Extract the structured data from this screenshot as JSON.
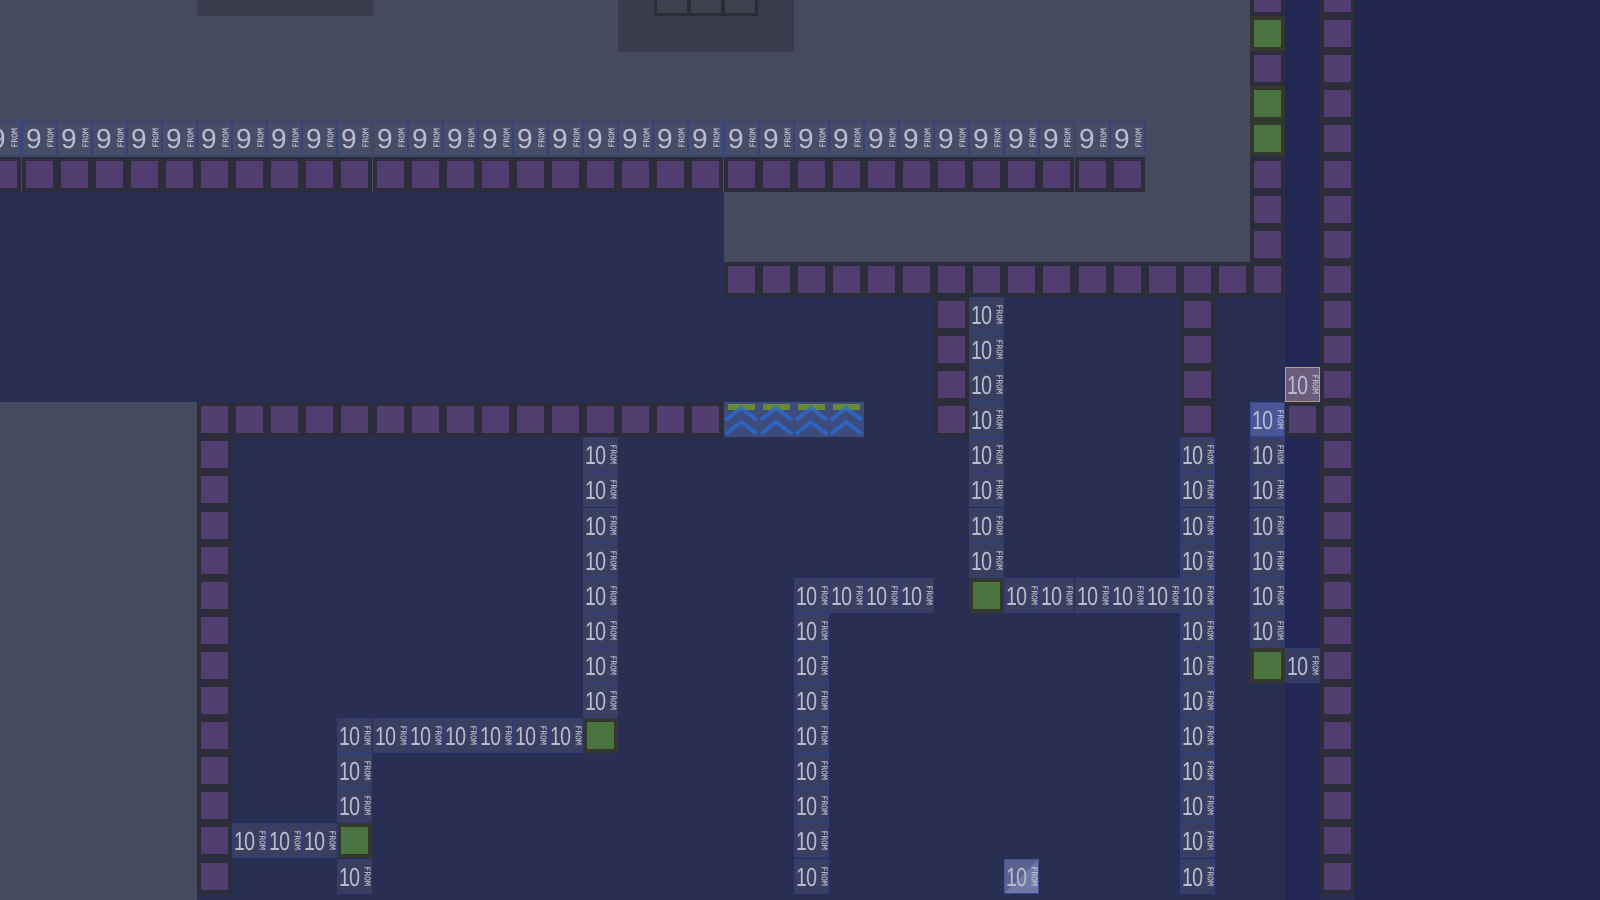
{
  "game": {
    "tile_labels": {
      "nine": "9",
      "ten": "10",
      "from": "FROM"
    },
    "tile_colors": {
      "purple": "#523d71",
      "green": "#4a7541",
      "background_navy": "#292e53",
      "background_gray": "#464a5f"
    }
  }
}
